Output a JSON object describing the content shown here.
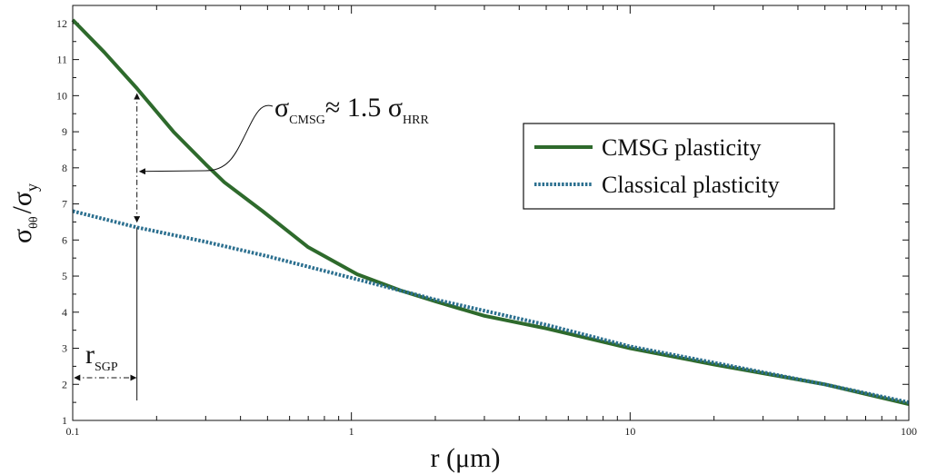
{
  "chart_data": {
    "type": "line",
    "x_scale": "log",
    "xlim": [
      0.1,
      100
    ],
    "ylim": [
      1,
      12.5
    ],
    "x_ticks": [
      "0.1",
      "1",
      "10",
      "100"
    ],
    "y_ticks": [
      "1",
      "2",
      "3",
      "4",
      "5",
      "6",
      "7",
      "8",
      "9",
      "10",
      "11",
      "12"
    ],
    "xlabel": "r (μm)",
    "ylabel": {
      "main": "σ",
      "main_sub": "θθ",
      "slash": "/",
      "denom": "σ",
      "denom_sub": "y"
    },
    "legend_position": "right",
    "series": [
      {
        "name": "CMSG plasticity",
        "style": "solid",
        "color": "#2e6a2c",
        "x": [
          0.1,
          0.13,
          0.17,
          0.23,
          0.3,
          0.35,
          0.48,
          0.7,
          1.05,
          1.5,
          2.0,
          3.0,
          5.0,
          10,
          20,
          50,
          100
        ],
        "y": [
          12.1,
          11.2,
          10.2,
          9.0,
          8.1,
          7.6,
          6.8,
          5.8,
          5.05,
          4.6,
          4.3,
          3.9,
          3.55,
          3.0,
          2.55,
          2.0,
          1.45
        ]
      },
      {
        "name": "Classical plasticity",
        "style": "dotted",
        "color": "#2b6f8f",
        "x": [
          0.1,
          0.17,
          0.3,
          0.5,
          1.0,
          2.0,
          5.0,
          10,
          20,
          50,
          100
        ],
        "y": [
          6.8,
          6.35,
          5.95,
          5.55,
          4.95,
          4.35,
          3.65,
          3.05,
          2.6,
          2.0,
          1.5
        ]
      }
    ],
    "annotations": {
      "ratio": {
        "sigma1": "σ",
        "sub1": "CMSG",
        "approx": "≈ 1.5 ",
        "sigma2": "σ",
        "sub2": "HRR"
      },
      "r_sgp": {
        "main": "r",
        "sub": "SGP",
        "x_value": 0.17
      }
    }
  }
}
